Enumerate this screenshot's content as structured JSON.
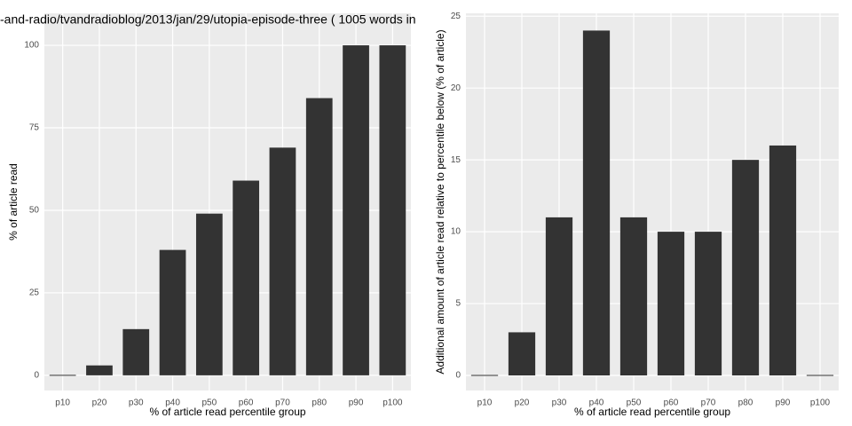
{
  "chart_data": [
    {
      "type": "bar",
      "title": "-and-radio/tvandradioblog/2013/jan/29/utopia-episode-three ( 1005 words in",
      "x_label": "% of article read percentile group",
      "y_label": "% of article read",
      "categories": [
        "p10",
        "p20",
        "p30",
        "p40",
        "p50",
        "p60",
        "p70",
        "p80",
        "p90",
        "p100"
      ],
      "values": [
        0,
        3,
        14,
        38,
        49,
        59,
        69,
        84,
        100,
        100
      ],
      "color": "#333333",
      "ylim": [
        -4.6,
        109.7
      ],
      "yticks": [
        0,
        25,
        50,
        75,
        100
      ],
      "grid": true
    },
    {
      "type": "bar",
      "x_label": "% of article read percentile group",
      "y_label": "Additional amount of article read relative to percentile below (% of article)",
      "categories": [
        "p10",
        "p20",
        "p30",
        "p40",
        "p50",
        "p60",
        "p70",
        "p80",
        "p90",
        "p100"
      ],
      "values": [
        0,
        3,
        11,
        24,
        11,
        10,
        10,
        15,
        16,
        0
      ],
      "color": "#333333",
      "ylim": [
        -1.05,
        25.2
      ],
      "yticks": [
        0,
        5,
        10,
        15,
        20,
        25
      ],
      "grid": true
    }
  ]
}
